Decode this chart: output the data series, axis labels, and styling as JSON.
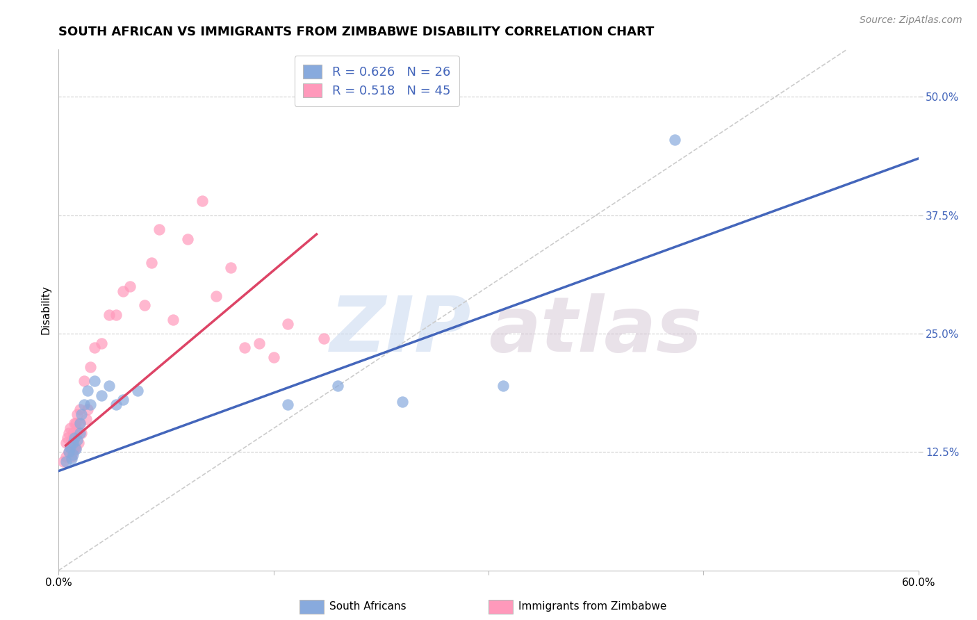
{
  "title": "SOUTH AFRICAN VS IMMIGRANTS FROM ZIMBABWE DISABILITY CORRELATION CHART",
  "source": "Source: ZipAtlas.com",
  "ylabel": "Disability",
  "xlim": [
    0.0,
    0.6
  ],
  "ylim": [
    0.0,
    0.55
  ],
  "xticks": [
    0.0,
    0.15,
    0.3,
    0.45,
    0.6
  ],
  "xticklabels": [
    "0.0%",
    "",
    "",
    "",
    "60.0%"
  ],
  "ytick_positions": [
    0.125,
    0.25,
    0.375,
    0.5
  ],
  "ytick_labels": [
    "12.5%",
    "25.0%",
    "37.5%",
    "50.0%"
  ],
  "blue_R": 0.626,
  "blue_N": 26,
  "pink_R": 0.518,
  "pink_N": 45,
  "blue_color": "#88AADD",
  "pink_color": "#FF99BB",
  "blue_line_color": "#4466BB",
  "pink_line_color": "#DD4466",
  "ref_line_color": "#CCCCCC",
  "watermark": "ZIPatlas",
  "blue_scatter_x": [
    0.005,
    0.007,
    0.008,
    0.009,
    0.01,
    0.01,
    0.011,
    0.012,
    0.013,
    0.015,
    0.015,
    0.016,
    0.018,
    0.02,
    0.022,
    0.025,
    0.03,
    0.035,
    0.04,
    0.045,
    0.055,
    0.16,
    0.195,
    0.24,
    0.31,
    0.43
  ],
  "blue_scatter_y": [
    0.115,
    0.125,
    0.13,
    0.118,
    0.122,
    0.135,
    0.14,
    0.128,
    0.138,
    0.155,
    0.145,
    0.165,
    0.175,
    0.19,
    0.175,
    0.2,
    0.185,
    0.195,
    0.175,
    0.18,
    0.19,
    0.175,
    0.195,
    0.178,
    0.195,
    0.455
  ],
  "pink_scatter_x": [
    0.003,
    0.005,
    0.005,
    0.006,
    0.007,
    0.007,
    0.008,
    0.008,
    0.009,
    0.009,
    0.01,
    0.01,
    0.011,
    0.011,
    0.012,
    0.012,
    0.013,
    0.013,
    0.014,
    0.015,
    0.015,
    0.016,
    0.018,
    0.019,
    0.02,
    0.022,
    0.025,
    0.03,
    0.035,
    0.04,
    0.045,
    0.05,
    0.06,
    0.065,
    0.07,
    0.08,
    0.09,
    0.1,
    0.11,
    0.12,
    0.13,
    0.14,
    0.15,
    0.16,
    0.185
  ],
  "pink_scatter_y": [
    0.115,
    0.12,
    0.135,
    0.14,
    0.125,
    0.145,
    0.13,
    0.15,
    0.12,
    0.138,
    0.125,
    0.145,
    0.13,
    0.155,
    0.13,
    0.155,
    0.145,
    0.165,
    0.135,
    0.155,
    0.17,
    0.145,
    0.2,
    0.16,
    0.17,
    0.215,
    0.235,
    0.24,
    0.27,
    0.27,
    0.295,
    0.3,
    0.28,
    0.325,
    0.36,
    0.265,
    0.35,
    0.39,
    0.29,
    0.32,
    0.235,
    0.24,
    0.225,
    0.26,
    0.245
  ],
  "blue_trendline_x": [
    0.0,
    0.6
  ],
  "blue_trendline_y": [
    0.105,
    0.435
  ],
  "pink_trendline_x": [
    0.005,
    0.18
  ],
  "pink_trendline_y": [
    0.132,
    0.355
  ],
  "ref_line_x": [
    0.0,
    0.55
  ],
  "ref_line_y": [
    0.0,
    0.55
  ],
  "background_color": "#FFFFFF",
  "grid_color": "#BBBBBB",
  "title_fontsize": 13,
  "label_fontsize": 11,
  "tick_fontsize": 11
}
